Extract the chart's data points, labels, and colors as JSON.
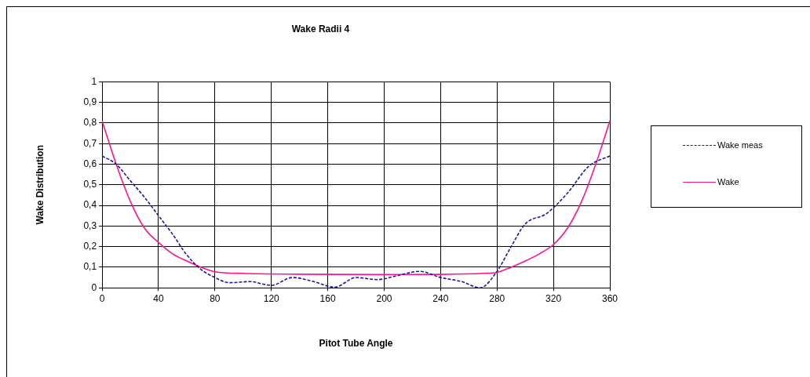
{
  "chart_data": {
    "type": "line",
    "title": "Wake Radii 4",
    "xlabel": "Pitot Tube Angle",
    "ylabel": "Wake Distribution",
    "xlim": [
      0,
      360
    ],
    "xticks": [
      0,
      40,
      80,
      120,
      160,
      200,
      240,
      280,
      320,
      360
    ],
    "ylim": [
      0,
      1
    ],
    "yticks": [
      0,
      {
        "value": 0.1,
        "label": "0,1"
      },
      {
        "value": 0.2,
        "label": "0,2"
      },
      {
        "value": 0.3,
        "label": "0,3"
      },
      {
        "value": 0.4,
        "label": "0,4"
      },
      {
        "value": 0.5,
        "label": "0,5"
      },
      {
        "value": 0.6,
        "label": "0,6"
      },
      {
        "value": 0.7,
        "label": "0,7"
      },
      {
        "value": 0.8,
        "label": "0,8"
      },
      {
        "value": 0.9,
        "label": "0,9"
      },
      1
    ],
    "grid": true,
    "legend": "right",
    "marker": "none",
    "series": [
      {
        "name": "Wake meas",
        "color": "#1a1a9c",
        "line_style": "dashed",
        "x": [
          0,
          10,
          20,
          30,
          40,
          50,
          60,
          70,
          80,
          90,
          105,
          120,
          135,
          150,
          165,
          180,
          195,
          210,
          225,
          240,
          255,
          268,
          280,
          290,
          300,
          315,
          330,
          345,
          360
        ],
        "values": [
          0.64,
          0.6,
          0.52,
          0.44,
          0.35,
          0.26,
          0.16,
          0.09,
          0.05,
          0.025,
          0.03,
          0.012,
          0.05,
          0.03,
          0.003,
          0.05,
          0.04,
          0.06,
          0.08,
          0.05,
          0.03,
          0.0,
          0.08,
          0.2,
          0.31,
          0.36,
          0.46,
          0.59,
          0.64
        ]
      },
      {
        "name": "Wake",
        "color": "#ff1493",
        "line_style": "solid",
        "x": [
          0,
          10,
          20,
          30,
          40,
          50,
          60,
          70,
          80,
          100,
          140,
          200,
          240,
          270,
          280,
          290,
          300,
          310,
          320,
          330,
          340,
          350,
          360
        ],
        "values": [
          0.81,
          0.6,
          0.42,
          0.29,
          0.22,
          0.165,
          0.13,
          0.1,
          0.078,
          0.07,
          0.066,
          0.064,
          0.065,
          0.07,
          0.075,
          0.1,
          0.13,
          0.165,
          0.21,
          0.29,
          0.42,
          0.6,
          0.81
        ]
      }
    ]
  }
}
